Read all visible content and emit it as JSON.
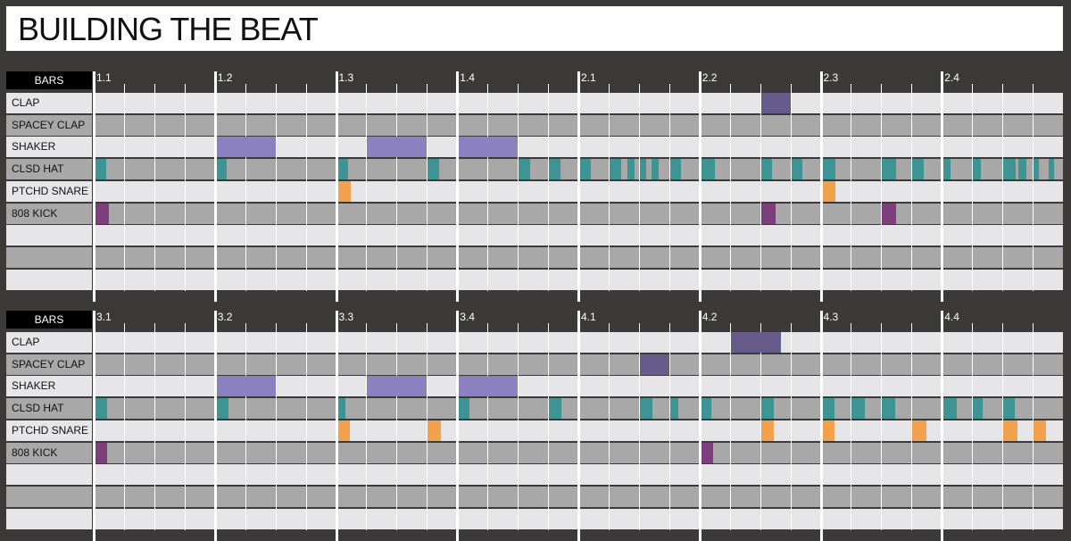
{
  "title": "BUILDING THE BEAT",
  "colors": {
    "background": "#3c3a39",
    "light_row": "#e6e6e8",
    "dark_row": "#a9a8a9",
    "clap": "#675b8c",
    "shaker": "#8b80c0",
    "hat": "#3e9493",
    "snare": "#f2a24c",
    "kick": "#7c3f7c"
  },
  "panels": [
    {
      "bars_label": "BARS",
      "bar_numbers": [
        "1.1",
        "1.2",
        "1.3",
        "1.4",
        "2.1",
        "2.2",
        "2.3",
        "2.4"
      ],
      "tracks": [
        "CLAP",
        "SPACEY CLAP",
        "SHAKER",
        "CLSD HAT",
        "PTCHD SNARE",
        "808 KICK",
        "",
        "",
        ""
      ],
      "notes": [
        {
          "track": 0,
          "start": 22,
          "length": 1
        },
        {
          "track": 2,
          "start": 4,
          "length": 2
        },
        {
          "track": 2,
          "start": 9,
          "length": 2
        },
        {
          "track": 2,
          "start": 12,
          "length": 2
        },
        {
          "track": 3,
          "start": 0,
          "length": 0.4
        },
        {
          "track": 3,
          "start": 4,
          "length": 0.4
        },
        {
          "track": 3,
          "start": 8,
          "length": 0.4
        },
        {
          "track": 3,
          "start": 11,
          "length": 0.4
        },
        {
          "track": 3,
          "start": 14,
          "length": 0.4
        },
        {
          "track": 3,
          "start": 15,
          "length": 0.4
        },
        {
          "track": 3,
          "start": 16,
          "length": 0.4
        },
        {
          "track": 3,
          "start": 17,
          "length": 0.4
        },
        {
          "track": 3,
          "start": 17.6,
          "length": 0.25
        },
        {
          "track": 3,
          "start": 18,
          "length": 0.25
        },
        {
          "track": 3,
          "start": 18.4,
          "length": 0.25
        },
        {
          "track": 3,
          "start": 19,
          "length": 0.4
        },
        {
          "track": 3,
          "start": 20,
          "length": 0.5
        },
        {
          "track": 3,
          "start": 22,
          "length": 0.4
        },
        {
          "track": 3,
          "start": 23,
          "length": 0.4
        },
        {
          "track": 3,
          "start": 24,
          "length": 0.5
        },
        {
          "track": 3,
          "start": 26,
          "length": 0.5
        },
        {
          "track": 3,
          "start": 27,
          "length": 0.4
        },
        {
          "track": 3,
          "start": 28,
          "length": 0.3
        },
        {
          "track": 3,
          "start": 29,
          "length": 0.3
        },
        {
          "track": 3,
          "start": 30,
          "length": 0.45
        },
        {
          "track": 3,
          "start": 30.5,
          "length": 0.3
        },
        {
          "track": 3,
          "start": 31,
          "length": 0.2
        },
        {
          "track": 3,
          "start": 31.5,
          "length": 0.2
        },
        {
          "track": 4,
          "start": 8,
          "length": 0.5
        },
        {
          "track": 4,
          "start": 24,
          "length": 0.5
        },
        {
          "track": 5,
          "start": 0,
          "length": 0.5
        },
        {
          "track": 5,
          "start": 22,
          "length": 0.5
        },
        {
          "track": 5,
          "start": 26,
          "length": 0.5
        }
      ]
    },
    {
      "bars_label": "BARS",
      "bar_numbers": [
        "3.1",
        "3.2",
        "3.3",
        "3.4",
        "4.1",
        "4.2",
        "4.3",
        "4.4"
      ],
      "tracks": [
        "CLAP",
        "SPACEY CLAP",
        "SHAKER",
        "CLSD HAT",
        "PTCHD SNARE",
        "808 KICK",
        "",
        "",
        ""
      ],
      "notes": [
        {
          "track": 0,
          "start": 21,
          "length": 1.7
        },
        {
          "track": 1,
          "start": 18,
          "length": 1
        },
        {
          "track": 2,
          "start": 4,
          "length": 2
        },
        {
          "track": 2,
          "start": 9,
          "length": 2
        },
        {
          "track": 2,
          "start": 12,
          "length": 2
        },
        {
          "track": 3,
          "start": 0,
          "length": 0.45
        },
        {
          "track": 3,
          "start": 4,
          "length": 0.45
        },
        {
          "track": 3,
          "start": 8,
          "length": 0.3
        },
        {
          "track": 3,
          "start": 12,
          "length": 0.4
        },
        {
          "track": 3,
          "start": 15,
          "length": 0.45
        },
        {
          "track": 3,
          "start": 18,
          "length": 0.45
        },
        {
          "track": 3,
          "start": 19,
          "length": 0.3
        },
        {
          "track": 3,
          "start": 20,
          "length": 0.4
        },
        {
          "track": 3,
          "start": 22,
          "length": 0.45
        },
        {
          "track": 3,
          "start": 24,
          "length": 0.45
        },
        {
          "track": 3,
          "start": 25,
          "length": 0.45
        },
        {
          "track": 3,
          "start": 26,
          "length": 0.45
        },
        {
          "track": 3,
          "start": 28,
          "length": 0.5
        },
        {
          "track": 3,
          "start": 29,
          "length": 0.35
        },
        {
          "track": 3,
          "start": 30,
          "length": 0.4
        },
        {
          "track": 4,
          "start": 8,
          "length": 0.45
        },
        {
          "track": 4,
          "start": 11,
          "length": 0.45
        },
        {
          "track": 4,
          "start": 22,
          "length": 0.45
        },
        {
          "track": 4,
          "start": 24,
          "length": 0.45
        },
        {
          "track": 4,
          "start": 27,
          "length": 0.5
        },
        {
          "track": 4,
          "start": 30,
          "length": 0.5
        },
        {
          "track": 4,
          "start": 31,
          "length": 0.45
        },
        {
          "track": 5,
          "start": 0,
          "length": 0.45
        },
        {
          "track": 5,
          "start": 20,
          "length": 0.45
        }
      ]
    }
  ]
}
